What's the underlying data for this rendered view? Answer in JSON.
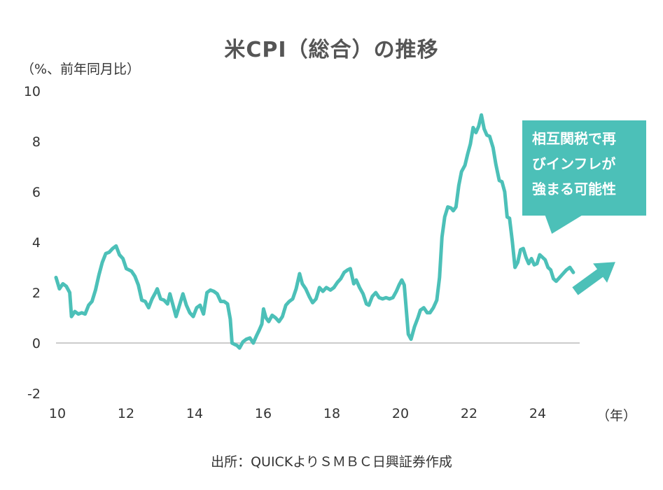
{
  "title": "米CPI（総合）の推移",
  "unit_label": "（%、前年同月比）",
  "x_unit_label": "（年）",
  "source": "出所：QUICKよりＳＭＢＣ日興証券作成",
  "callout": {
    "lines": [
      "相互関税で再",
      "びインフレが",
      "強まる可能性"
    ],
    "color": "#4cc0b8"
  },
  "colors": {
    "line": "#4cc0b8",
    "axis": "#bbbbbb",
    "arrow": "#4cc0b8"
  },
  "chart_data": {
    "type": "line",
    "title": "米CPI（総合）の推移",
    "xlabel": "（年）",
    "ylabel": "（%、前年同月比）",
    "ylim": [
      -2,
      10
    ],
    "xlim": [
      2010,
      2025.6
    ],
    "y_ticks": [
      "10",
      "8",
      "6",
      "4",
      "2",
      "0",
      "-2"
    ],
    "y_tick_values": [
      10,
      8,
      6,
      4,
      2,
      0,
      -2
    ],
    "x_ticks": [
      "10",
      "12",
      "14",
      "16",
      "18",
      "20",
      "22",
      "24"
    ],
    "x_tick_values": [
      2010,
      2012,
      2014,
      2016,
      2018,
      2020,
      2022,
      2024
    ],
    "series": [
      {
        "points": [
          [
            2010.0,
            2.6
          ],
          [
            2010.1,
            2.15
          ],
          [
            2010.2,
            2.35
          ],
          [
            2010.3,
            2.25
          ],
          [
            2010.4,
            2.0
          ],
          [
            2010.45,
            1.05
          ],
          [
            2010.55,
            1.25
          ],
          [
            2010.65,
            1.15
          ],
          [
            2010.75,
            1.2
          ],
          [
            2010.85,
            1.15
          ],
          [
            2010.95,
            1.5
          ],
          [
            2011.05,
            1.65
          ],
          [
            2011.15,
            2.1
          ],
          [
            2011.25,
            2.7
          ],
          [
            2011.35,
            3.2
          ],
          [
            2011.45,
            3.55
          ],
          [
            2011.55,
            3.6
          ],
          [
            2011.65,
            3.75
          ],
          [
            2011.75,
            3.85
          ],
          [
            2011.85,
            3.5
          ],
          [
            2011.95,
            3.35
          ],
          [
            2012.05,
            2.95
          ],
          [
            2012.2,
            2.85
          ],
          [
            2012.3,
            2.65
          ],
          [
            2012.4,
            2.3
          ],
          [
            2012.5,
            1.7
          ],
          [
            2012.6,
            1.65
          ],
          [
            2012.7,
            1.4
          ],
          [
            2012.8,
            1.75
          ],
          [
            2012.9,
            2.0
          ],
          [
            2012.95,
            2.15
          ],
          [
            2013.05,
            1.75
          ],
          [
            2013.15,
            1.7
          ],
          [
            2013.25,
            1.55
          ],
          [
            2013.32,
            1.95
          ],
          [
            2013.42,
            1.45
          ],
          [
            2013.5,
            1.05
          ],
          [
            2013.6,
            1.5
          ],
          [
            2013.7,
            1.95
          ],
          [
            2013.8,
            1.5
          ],
          [
            2013.9,
            1.2
          ],
          [
            2014.0,
            1.05
          ],
          [
            2014.1,
            1.4
          ],
          [
            2014.2,
            1.5
          ],
          [
            2014.3,
            1.15
          ],
          [
            2014.4,
            2.0
          ],
          [
            2014.5,
            2.1
          ],
          [
            2014.6,
            2.05
          ],
          [
            2014.7,
            1.95
          ],
          [
            2014.8,
            1.65
          ],
          [
            2014.9,
            1.65
          ],
          [
            2015.0,
            1.55
          ],
          [
            2015.08,
            0.95
          ],
          [
            2015.13,
            0.0
          ],
          [
            2015.2,
            -0.05
          ],
          [
            2015.28,
            -0.1
          ],
          [
            2015.35,
            -0.2
          ],
          [
            2015.45,
            0.05
          ],
          [
            2015.55,
            0.15
          ],
          [
            2015.65,
            0.2
          ],
          [
            2015.75,
            0.0
          ],
          [
            2015.85,
            0.3
          ],
          [
            2015.92,
            0.5
          ],
          [
            2016.0,
            0.75
          ],
          [
            2016.05,
            1.35
          ],
          [
            2016.12,
            1.0
          ],
          [
            2016.2,
            0.85
          ],
          [
            2016.3,
            1.1
          ],
          [
            2016.4,
            1.0
          ],
          [
            2016.5,
            0.85
          ],
          [
            2016.6,
            1.05
          ],
          [
            2016.7,
            1.5
          ],
          [
            2016.8,
            1.65
          ],
          [
            2016.9,
            1.75
          ],
          [
            2017.0,
            2.15
          ],
          [
            2017.1,
            2.75
          ],
          [
            2017.18,
            2.35
          ],
          [
            2017.28,
            2.15
          ],
          [
            2017.38,
            1.85
          ],
          [
            2017.48,
            1.6
          ],
          [
            2017.58,
            1.75
          ],
          [
            2017.68,
            2.2
          ],
          [
            2017.78,
            2.05
          ],
          [
            2017.88,
            2.2
          ],
          [
            2018.0,
            2.1
          ],
          [
            2018.1,
            2.2
          ],
          [
            2018.2,
            2.4
          ],
          [
            2018.3,
            2.55
          ],
          [
            2018.4,
            2.8
          ],
          [
            2018.5,
            2.9
          ],
          [
            2018.58,
            2.95
          ],
          [
            2018.68,
            2.35
          ],
          [
            2018.75,
            2.5
          ],
          [
            2018.85,
            2.2
          ],
          [
            2018.95,
            1.95
          ],
          [
            2019.05,
            1.55
          ],
          [
            2019.12,
            1.5
          ],
          [
            2019.22,
            1.85
          ],
          [
            2019.32,
            2.0
          ],
          [
            2019.42,
            1.8
          ],
          [
            2019.52,
            1.75
          ],
          [
            2019.62,
            1.8
          ],
          [
            2019.72,
            1.75
          ],
          [
            2019.82,
            1.8
          ],
          [
            2019.92,
            2.05
          ],
          [
            2020.0,
            2.3
          ],
          [
            2020.08,
            2.5
          ],
          [
            2020.15,
            2.3
          ],
          [
            2020.2,
            1.5
          ],
          [
            2020.27,
            0.35
          ],
          [
            2020.35,
            0.15
          ],
          [
            2020.45,
            0.65
          ],
          [
            2020.55,
            1.0
          ],
          [
            2020.62,
            1.3
          ],
          [
            2020.72,
            1.4
          ],
          [
            2020.82,
            1.2
          ],
          [
            2020.9,
            1.2
          ],
          [
            2021.0,
            1.4
          ],
          [
            2021.1,
            1.7
          ],
          [
            2021.18,
            2.6
          ],
          [
            2021.25,
            4.2
          ],
          [
            2021.33,
            5.0
          ],
          [
            2021.42,
            5.4
          ],
          [
            2021.52,
            5.35
          ],
          [
            2021.58,
            5.25
          ],
          [
            2021.66,
            5.4
          ],
          [
            2021.74,
            6.25
          ],
          [
            2021.82,
            6.8
          ],
          [
            2021.92,
            7.05
          ],
          [
            2022.0,
            7.5
          ],
          [
            2022.08,
            7.9
          ],
          [
            2022.16,
            8.55
          ],
          [
            2022.24,
            8.35
          ],
          [
            2022.32,
            8.6
          ],
          [
            2022.4,
            9.05
          ],
          [
            2022.48,
            8.5
          ],
          [
            2022.56,
            8.25
          ],
          [
            2022.64,
            8.2
          ],
          [
            2022.74,
            7.75
          ],
          [
            2022.82,
            7.1
          ],
          [
            2022.92,
            6.45
          ],
          [
            2023.0,
            6.4
          ],
          [
            2023.08,
            6.0
          ],
          [
            2023.15,
            5.0
          ],
          [
            2023.22,
            4.95
          ],
          [
            2023.3,
            4.05
          ],
          [
            2023.38,
            3.0
          ],
          [
            2023.46,
            3.2
          ],
          [
            2023.54,
            3.7
          ],
          [
            2023.62,
            3.75
          ],
          [
            2023.7,
            3.4
          ],
          [
            2023.78,
            3.15
          ],
          [
            2023.86,
            3.35
          ],
          [
            2023.94,
            3.1
          ],
          [
            2024.02,
            3.15
          ],
          [
            2024.1,
            3.5
          ],
          [
            2024.18,
            3.4
          ],
          [
            2024.26,
            3.3
          ],
          [
            2024.34,
            3.0
          ],
          [
            2024.42,
            2.9
          ],
          [
            2024.5,
            2.55
          ],
          [
            2024.58,
            2.45
          ],
          [
            2024.68,
            2.6
          ],
          [
            2024.78,
            2.75
          ],
          [
            2024.88,
            2.9
          ],
          [
            2024.98,
            3.0
          ],
          [
            2025.08,
            2.8
          ]
        ]
      }
    ]
  }
}
